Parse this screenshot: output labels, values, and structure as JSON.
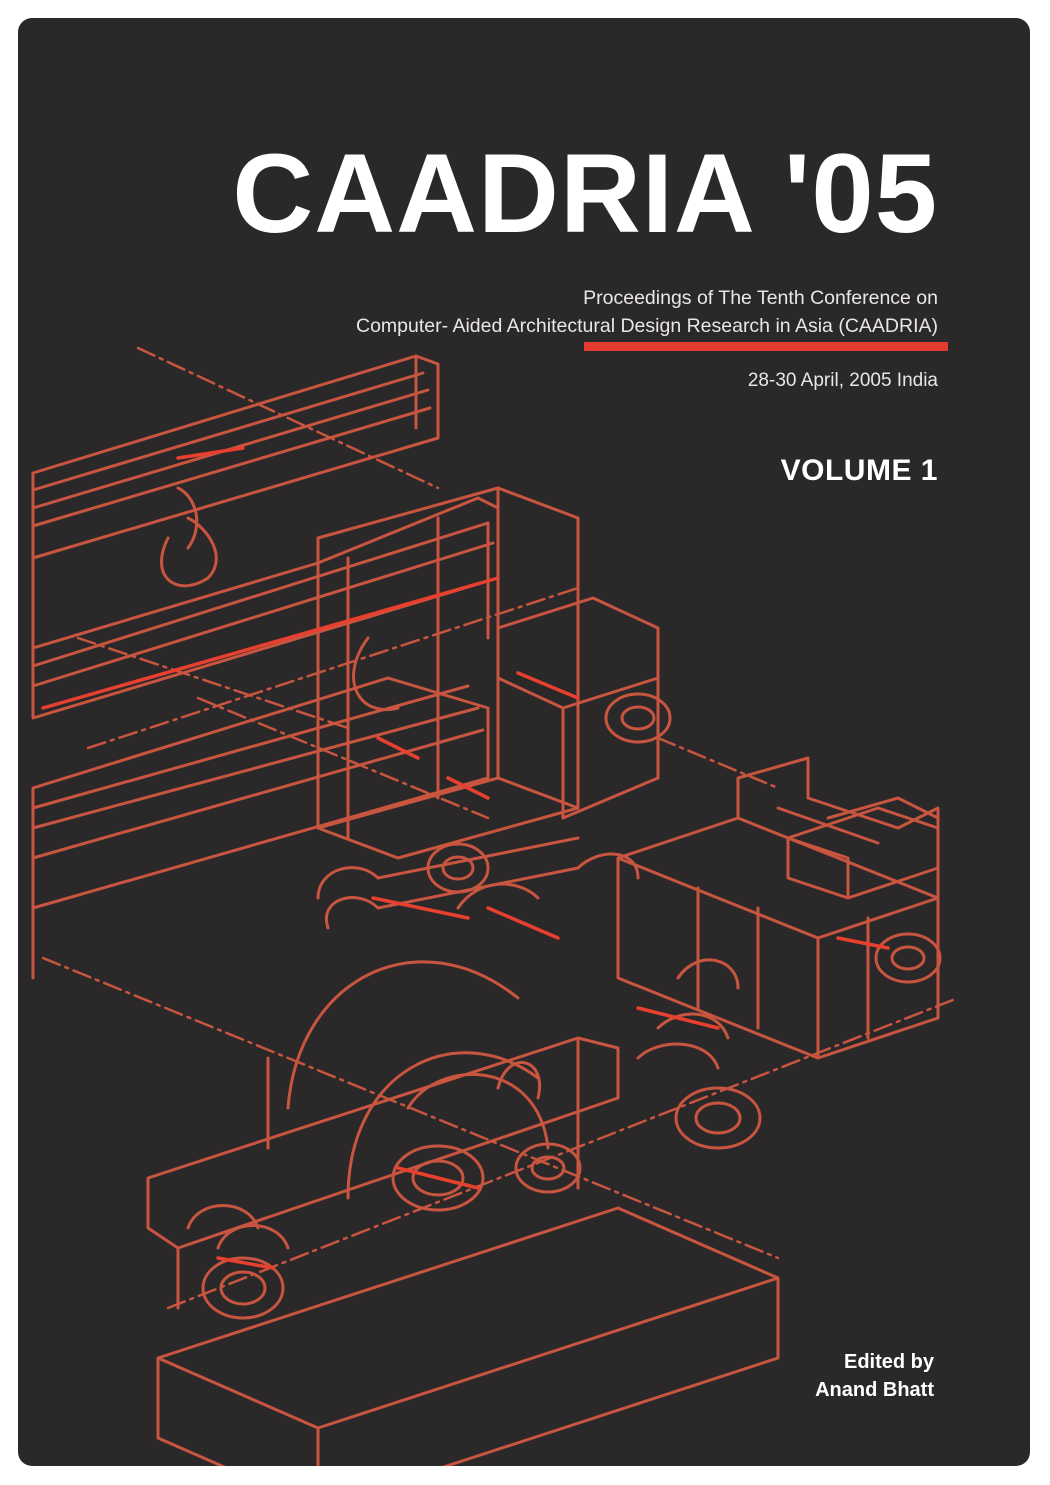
{
  "cover": {
    "title": "CAADRIA '05",
    "subtitle_line1": "Proceedings of The Tenth Conference on",
    "subtitle_line2": "Computer- Aided Architectural Design  Research in Asia (CAADRIA)",
    "dates": "28-30 April, 2005 India",
    "volume": "VOLUME 1",
    "edited_by": "Edited by",
    "editor_name": "Anand Bhatt"
  },
  "colors": {
    "background": "#2b2829",
    "accent_rule": "#e33b2e",
    "drawing_lines": "#c8553f",
    "drawing_highlight": "#e8402f",
    "text": "#ffffff"
  }
}
